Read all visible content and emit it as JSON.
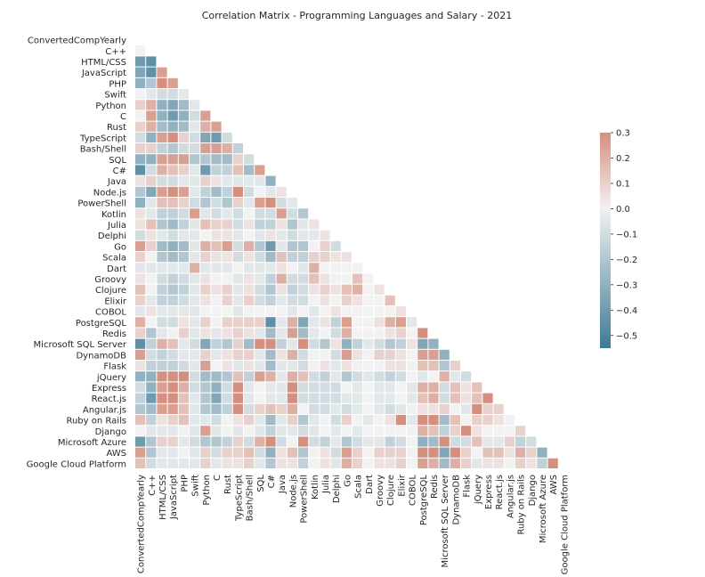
{
  "chart_data": {
    "type": "heatmap",
    "title": "Correlation Matrix - Programming Languages and Salary - 2021",
    "mask": "upper-triangle",
    "labels": [
      "ConvertedCompYearly",
      "C++",
      "HTML/CSS",
      "JavaScript",
      "PHP",
      "Swift",
      "Python",
      "C",
      "Rust",
      "TypeScript",
      "Bash/Shell",
      "SQL",
      "C#",
      "Java",
      "Node.js",
      "PowerShell",
      "Kotlin",
      "Julia",
      "Delphi",
      "Go",
      "Scala",
      "Dart",
      "Groovy",
      "Clojure",
      "Elixir",
      "COBOL",
      "PostgreSQL",
      "Redis",
      "Microsoft SQL Server",
      "DynamoDB",
      "Flask",
      "jQuery",
      "Express",
      "React.js",
      "Angular.js",
      "Ruby on Rails",
      "Django",
      "Microsoft Azure",
      "AWS",
      "Google Cloud Platform"
    ],
    "colorbar": {
      "min": -0.55,
      "max": 0.3,
      "ticks": [
        0.3,
        0.2,
        0.1,
        0.0,
        -0.1,
        -0.2,
        -0.3,
        -0.4,
        -0.5
      ],
      "tick_labels": [
        "0.3",
        "0.2",
        "0.1",
        "0.0",
        "−0.1",
        "−0.2",
        "−0.3",
        "−0.4",
        "−0.5"
      ],
      "neg_color": "#3f7a95",
      "mid_color": "#f2f2f2",
      "pos_color": "#d48f7f"
    },
    "values": [
      [],
      [
        0.0
      ],
      [
        -0.4,
        -0.45
      ],
      [
        -0.35,
        -0.45,
        0.25
      ],
      [
        -0.3,
        -0.2,
        0.3,
        0.25
      ],
      [
        0.0,
        -0.05,
        -0.1,
        -0.1,
        -0.05
      ],
      [
        0.1,
        0.2,
        -0.3,
        -0.35,
        -0.25,
        -0.05
      ],
      [
        0.0,
        0.25,
        -0.3,
        -0.4,
        -0.3,
        -0.1,
        0.25
      ],
      [
        0.1,
        0.2,
        -0.25,
        -0.3,
        -0.25,
        -0.05,
        0.2,
        0.25
      ],
      [
        -0.1,
        -0.3,
        0.25,
        0.3,
        0.1,
        -0.1,
        -0.35,
        -0.4,
        -0.1
      ],
      [
        0.1,
        0.1,
        -0.15,
        -0.2,
        -0.1,
        -0.1,
        0.25,
        0.25,
        0.2,
        -0.15
      ],
      [
        -0.3,
        -0.3,
        0.25,
        0.25,
        0.25,
        -0.2,
        -0.2,
        -0.25,
        -0.25,
        0.1,
        -0.1
      ],
      [
        -0.45,
        -0.1,
        0.2,
        0.15,
        0.1,
        -0.05,
        -0.4,
        -0.15,
        -0.15,
        0.15,
        -0.25,
        0.25
      ],
      [
        0.05,
        0.1,
        -0.1,
        -0.1,
        -0.05,
        -0.05,
        0.1,
        0.05,
        -0.05,
        -0.05,
        -0.05,
        -0.05,
        -0.3
      ],
      [
        -0.2,
        -0.35,
        0.25,
        0.3,
        0.25,
        -0.05,
        -0.15,
        -0.25,
        -0.15,
        0.3,
        -0.1,
        0.0,
        -0.05,
        0.05
      ],
      [
        -0.3,
        -0.05,
        0.15,
        0.15,
        0.1,
        -0.1,
        -0.2,
        -0.1,
        -0.2,
        0.1,
        -0.05,
        0.25,
        0.3,
        -0.1,
        -0.05
      ],
      [
        0.05,
        -0.05,
        -0.15,
        -0.15,
        -0.1,
        0.25,
        -0.05,
        -0.1,
        -0.05,
        -0.1,
        0.0,
        -0.1,
        -0.1,
        0.25,
        -0.1,
        -0.2
      ],
      [
        0.05,
        0.15,
        -0.2,
        -0.25,
        -0.15,
        -0.05,
        0.15,
        0.1,
        0.1,
        -0.1,
        0.05,
        -0.15,
        -0.15,
        0.05,
        -0.2,
        -0.05,
        0.05
      ],
      [
        -0.1,
        0.05,
        -0.05,
        -0.1,
        -0.05,
        -0.05,
        0.0,
        0.05,
        0.05,
        -0.05,
        0.0,
        -0.05,
        0.05,
        -0.05,
        -0.1,
        -0.05,
        -0.05,
        0.05
      ],
      [
        0.25,
        0.1,
        -0.25,
        -0.3,
        -0.25,
        -0.05,
        0.2,
        0.15,
        0.25,
        -0.1,
        0.2,
        -0.2,
        -0.4,
        -0.05,
        -0.2,
        -0.2,
        0.0,
        0.1,
        -0.1
      ],
      [
        0.1,
        0.0,
        -0.2,
        -0.25,
        -0.2,
        -0.05,
        0.1,
        0.05,
        0.05,
        -0.1,
        0.05,
        -0.1,
        -0.25,
        0.15,
        -0.15,
        -0.15,
        0.1,
        0.1,
        0.05,
        0.05
      ],
      [
        -0.05,
        -0.05,
        -0.05,
        -0.05,
        -0.05,
        0.2,
        -0.05,
        -0.05,
        -0.05,
        0.0,
        -0.05,
        -0.05,
        -0.05,
        0.05,
        0.0,
        -0.05,
        0.2,
        0.0,
        0.0,
        0.0,
        0.0
      ],
      [
        0.05,
        0.0,
        -0.1,
        -0.15,
        -0.1,
        -0.05,
        0.05,
        0.0,
        0.0,
        -0.05,
        0.05,
        -0.05,
        -0.15,
        0.2,
        -0.1,
        -0.1,
        0.15,
        0.05,
        0.0,
        0.0,
        0.15,
        0.0
      ],
      [
        0.15,
        0.0,
        -0.15,
        -0.2,
        -0.15,
        -0.05,
        0.1,
        0.05,
        0.1,
        -0.05,
        0.05,
        -0.1,
        -0.2,
        0.05,
        -0.15,
        -0.1,
        0.05,
        0.1,
        0.05,
        0.15,
        0.2,
        0.0,
        0.05
      ],
      [
        0.1,
        -0.05,
        -0.15,
        -0.15,
        -0.1,
        -0.05,
        0.05,
        0.0,
        0.1,
        -0.05,
        0.1,
        -0.1,
        -0.15,
        -0.05,
        -0.1,
        -0.1,
        0.0,
        0.05,
        0.0,
        0.1,
        0.05,
        0.0,
        0.0,
        0.15
      ],
      [
        -0.05,
        0.05,
        -0.05,
        -0.05,
        -0.05,
        -0.05,
        0.0,
        0.0,
        0.0,
        -0.05,
        0.0,
        0.0,
        0.0,
        0.0,
        -0.05,
        0.0,
        -0.05,
        0.0,
        0.05,
        0.0,
        0.0,
        0.0,
        0.0,
        0.0,
        0.05
      ],
      [
        0.2,
        0.0,
        -0.1,
        -0.1,
        0.05,
        -0.05,
        0.1,
        0.0,
        0.1,
        0.1,
        0.1,
        0.1,
        -0.45,
        -0.05,
        0.2,
        -0.35,
        -0.05,
        0.05,
        -0.15,
        0.25,
        0.0,
        0.0,
        0.05,
        0.2,
        0.25,
        -0.05
      ],
      [
        0.1,
        -0.2,
        -0.05,
        0.0,
        0.1,
        -0.05,
        0.05,
        -0.05,
        0.05,
        0.1,
        0.05,
        -0.05,
        -0.25,
        -0.05,
        0.25,
        -0.25,
        -0.05,
        0.0,
        -0.1,
        0.2,
        0.0,
        0.0,
        0.0,
        0.05,
        0.1,
        0.0,
        0.3
      ],
      [
        -0.45,
        -0.15,
        0.2,
        0.15,
        -0.05,
        -0.1,
        -0.35,
        -0.15,
        -0.2,
        0.1,
        -0.25,
        0.3,
        0.4,
        -0.15,
        -0.05,
        0.3,
        -0.1,
        -0.2,
        0.05,
        -0.3,
        -0.15,
        -0.05,
        -0.1,
        -0.2,
        -0.15,
        0.05,
        -0.35,
        -0.3
      ],
      [
        0.25,
        -0.1,
        -0.15,
        -0.1,
        -0.05,
        -0.05,
        0.1,
        -0.05,
        0.05,
        0.1,
        0.1,
        -0.05,
        -0.25,
        0.05,
        0.2,
        -0.1,
        0.0,
        0.0,
        -0.1,
        0.25,
        0.05,
        0.0,
        0.1,
        0.1,
        0.05,
        0.0,
        0.25,
        0.25,
        -0.3
      ],
      [
        0.05,
        -0.15,
        -0.15,
        -0.15,
        -0.1,
        -0.05,
        0.25,
        0.0,
        0.05,
        -0.05,
        0.05,
        -0.05,
        -0.25,
        -0.05,
        -0.05,
        -0.1,
        0.0,
        0.05,
        -0.05,
        0.05,
        0.0,
        0.0,
        0.0,
        0.05,
        0.05,
        0.0,
        0.15,
        0.15,
        -0.2,
        0.1
      ],
      [
        -0.3,
        -0.3,
        0.3,
        0.3,
        0.3,
        -0.1,
        -0.25,
        -0.25,
        -0.2,
        0.15,
        -0.15,
        0.25,
        0.2,
        -0.05,
        0.2,
        0.15,
        -0.1,
        -0.15,
        -0.05,
        -0.2,
        -0.1,
        -0.05,
        -0.1,
        -0.15,
        -0.1,
        0.0,
        -0.05,
        0.0,
        0.2,
        -0.05,
        -0.1
      ],
      [
        -0.1,
        -0.3,
        0.25,
        0.3,
        0.2,
        -0.1,
        -0.2,
        -0.3,
        -0.1,
        0.3,
        -0.05,
        0.0,
        -0.05,
        -0.05,
        0.3,
        -0.1,
        -0.1,
        -0.1,
        -0.1,
        0.0,
        -0.05,
        0.0,
        -0.05,
        -0.05,
        0.0,
        -0.05,
        0.2,
        0.2,
        -0.1,
        0.15,
        0.05,
        0.15
      ],
      [
        -0.15,
        -0.4,
        0.3,
        0.3,
        0.15,
        -0.05,
        -0.2,
        -0.35,
        -0.1,
        0.35,
        -0.05,
        0.0,
        -0.05,
        -0.05,
        0.3,
        -0.1,
        -0.1,
        -0.1,
        -0.1,
        -0.05,
        -0.05,
        0.0,
        -0.05,
        -0.05,
        0.0,
        -0.05,
        0.15,
        0.2,
        -0.1,
        0.15,
        0.05,
        0.15,
        0.3
      ],
      [
        -0.2,
        -0.25,
        0.25,
        0.25,
        0.15,
        -0.05,
        -0.2,
        -0.25,
        -0.15,
        0.3,
        -0.1,
        0.1,
        0.15,
        0.1,
        0.2,
        0.0,
        -0.1,
        -0.1,
        -0.05,
        -0.1,
        -0.05,
        0.0,
        -0.05,
        -0.1,
        -0.05,
        0.0,
        0.05,
        0.05,
        0.1,
        0.0,
        -0.05,
        0.3,
        0.1,
        0.1
      ],
      [
        0.15,
        -0.15,
        0.05,
        0.1,
        0.15,
        -0.05,
        -0.05,
        -0.1,
        0.0,
        0.05,
        0.1,
        -0.05,
        -0.25,
        -0.05,
        0.1,
        -0.2,
        -0.05,
        0.0,
        -0.1,
        0.1,
        0.0,
        -0.05,
        0.0,
        0.05,
        0.35,
        -0.05,
        0.3,
        0.3,
        -0.25,
        0.15,
        0.0,
        0.1,
        0.1,
        0.05,
        0.0
      ],
      [
        0.0,
        -0.05,
        -0.05,
        -0.05,
        0.0,
        -0.05,
        0.25,
        -0.05,
        0.0,
        -0.05,
        0.0,
        -0.05,
        -0.15,
        -0.05,
        -0.05,
        -0.1,
        -0.05,
        0.0,
        -0.05,
        0.0,
        -0.05,
        0.0,
        0.0,
        0.0,
        0.0,
        0.0,
        0.2,
        0.15,
        -0.15,
        0.1,
        0.35,
        0.05,
        0.0,
        0.0,
        0.0,
        0.1
      ],
      [
        -0.4,
        -0.2,
        0.1,
        0.1,
        -0.05,
        -0.1,
        -0.2,
        -0.2,
        -0.15,
        0.1,
        -0.1,
        0.2,
        0.35,
        -0.1,
        0.0,
        0.35,
        -0.1,
        -0.15,
        -0.05,
        -0.2,
        -0.1,
        -0.05,
        -0.05,
        -0.15,
        -0.1,
        0.0,
        -0.3,
        -0.25,
        0.35,
        -0.1,
        -0.1,
        0.15,
        -0.05,
        -0.05,
        0.1,
        -0.15,
        -0.1
      ],
      [
        0.25,
        -0.2,
        -0.05,
        -0.05,
        0.0,
        -0.05,
        0.1,
        -0.1,
        0.1,
        0.1,
        0.15,
        -0.1,
        -0.3,
        0.05,
        0.15,
        -0.2,
        0.0,
        0.05,
        -0.1,
        0.25,
        0.1,
        0.0,
        0.1,
        0.1,
        0.1,
        0.0,
        0.3,
        0.3,
        -0.35,
        0.3,
        0.1,
        0.0,
        0.15,
        0.15,
        0.05,
        0.2,
        0.1,
        -0.3
      ],
      [
        0.15,
        -0.1,
        -0.05,
        -0.05,
        -0.05,
        -0.05,
        0.1,
        -0.05,
        0.05,
        0.05,
        0.1,
        -0.05,
        -0.2,
        0.05,
        0.05,
        -0.15,
        0.0,
        0.05,
        -0.05,
        0.2,
        0.1,
        0.0,
        0.05,
        0.05,
        0.1,
        0.0,
        0.25,
        0.2,
        -0.25,
        0.2,
        0.1,
        -0.05,
        0.05,
        0.05,
        0.0,
        0.1,
        0.05,
        -0.15,
        0.3
      ]
    ]
  }
}
